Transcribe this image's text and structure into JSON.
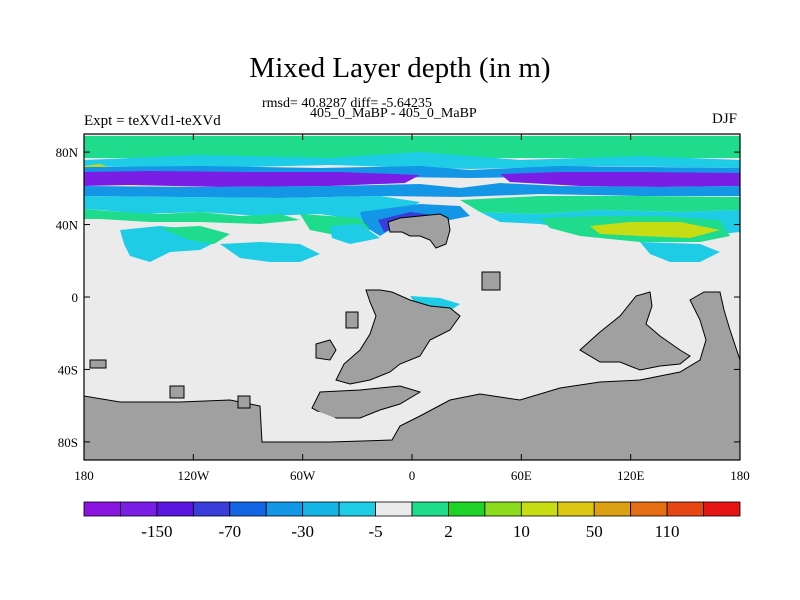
{
  "figure": {
    "title": "Mixed Layer depth (in m)",
    "stats_line": "rmsd= 40.8287 diff= -5.64235",
    "subtitle": "405_0_MaBP - 405_0_MaBP",
    "left_label": "Expt = teXVd1-teXVd",
    "right_label": "DJF"
  },
  "axes": {
    "x_ticks": [
      {
        "value": -180,
        "label": "180"
      },
      {
        "value": -120,
        "label": "120W"
      },
      {
        "value": -60,
        "label": "60W"
      },
      {
        "value": 0,
        "label": "0"
      },
      {
        "value": 60,
        "label": "60E"
      },
      {
        "value": 120,
        "label": "120E"
      },
      {
        "value": 180,
        "label": "180"
      }
    ],
    "y_ticks": [
      {
        "value": 80,
        "label": "80N"
      },
      {
        "value": 40,
        "label": "40N"
      },
      {
        "value": 0,
        "label": "0"
      },
      {
        "value": -40,
        "label": "40S"
      },
      {
        "value": -80,
        "label": "80S"
      }
    ]
  },
  "colorbar": {
    "colors": [
      "#8a14e0",
      "#7a1ee6",
      "#5a14e0",
      "#3a3cdc",
      "#1464e6",
      "#1496e6",
      "#14b4e6",
      "#1ecce6",
      "#ebebeb",
      "#1edc8c",
      "#1ed228",
      "#8cdc1e",
      "#c8dc14",
      "#dcc814",
      "#dca014",
      "#e66e14",
      "#e64614",
      "#e61414"
    ],
    "labels": [
      "-150",
      "-70",
      "-30",
      "-5",
      "2",
      "10",
      "50",
      "110"
    ]
  },
  "colors": {
    "land": "#a0a0a0",
    "near_zero": "#ebebeb",
    "green": "#1edc8c",
    "cyan": "#1ecce6",
    "blue": "#1496e6",
    "deep_blue": "#3a3cdc",
    "purple": "#7a1ee6",
    "yellow": "#c8dc14",
    "lime": "#8cdc1e"
  }
}
